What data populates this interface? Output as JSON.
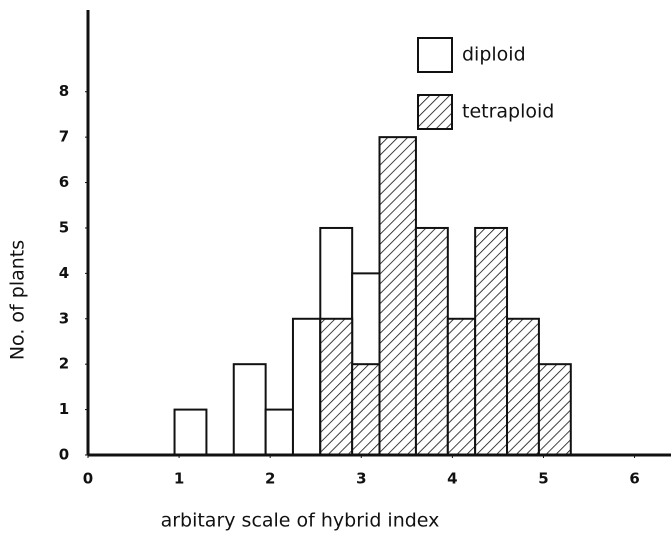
{
  "chart_data": {
    "type": "histogram",
    "xlabel": "arbitary scale of hybrid index",
    "ylabel": "No. of plants",
    "bins": [
      0.95,
      1.3,
      1.6,
      1.95,
      2.25,
      2.55,
      2.9,
      3.2,
      3.6,
      3.95,
      4.25,
      4.6,
      4.95,
      5.3
    ],
    "series": [
      {
        "name": "diploid",
        "color": "#ffffff",
        "values": [
          1,
          0,
          2,
          1,
          3,
          5,
          4,
          4,
          0,
          1,
          0,
          0,
          0
        ]
      },
      {
        "name": "tetraploid",
        "color": "hatch",
        "values": [
          0,
          0,
          0,
          0,
          0,
          3,
          2,
          7,
          5,
          3,
          5,
          3,
          2
        ]
      }
    ],
    "xlim": [
      0,
      6.4
    ],
    "ylim": [
      0,
      9.8
    ],
    "xticks": [
      0,
      1,
      2,
      3,
      4,
      5,
      6
    ],
    "yticks": [
      0,
      1,
      2,
      3,
      4,
      5,
      6,
      7,
      8
    ],
    "grid": false
  }
}
